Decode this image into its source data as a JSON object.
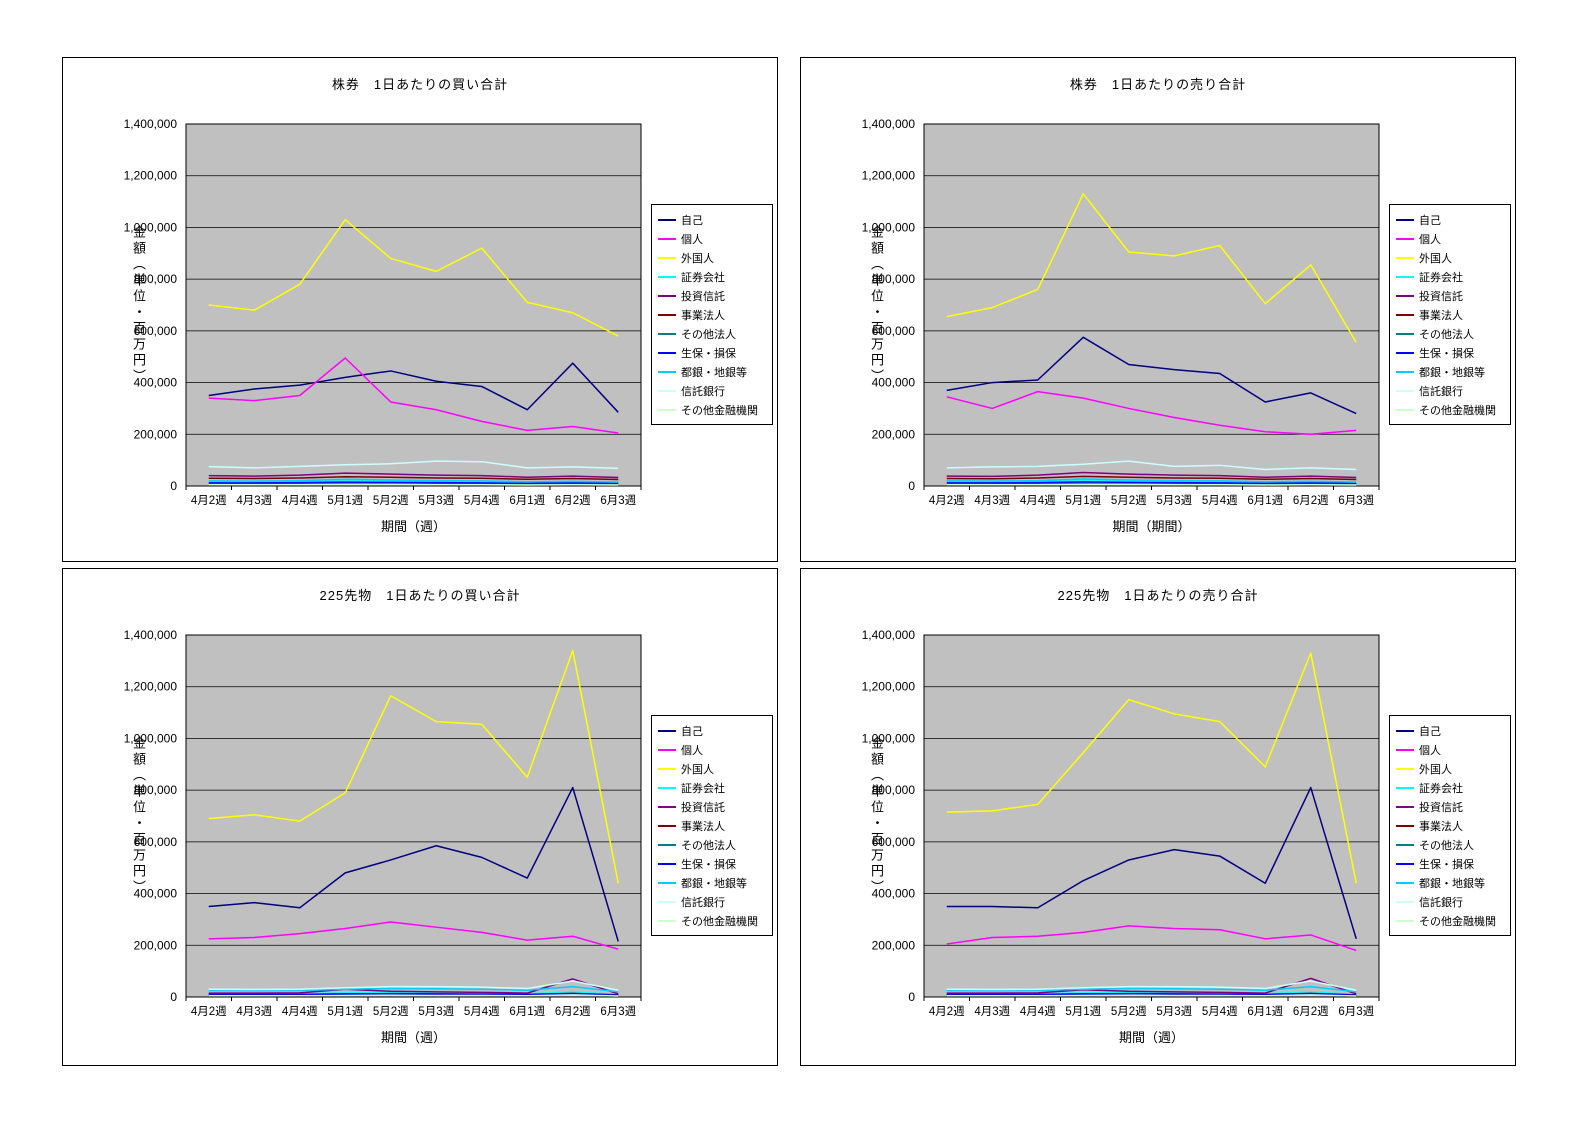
{
  "page": {
    "background": "#FFFFFF",
    "plot_background": "#C0C0C0",
    "axis_color": "#000000"
  },
  "chart_data": [
    {
      "type": "line",
      "title": "株券　1日あたりの買い合計",
      "xlabel": "期間（週）",
      "ylabel": "金額（単位・百万円）",
      "ylim": [
        0,
        1400000
      ],
      "ytick_step": 200000,
      "grid": true,
      "legend_position": "right",
      "categories": [
        "4月2週",
        "4月3週",
        "4月4週",
        "5月1週",
        "5月2週",
        "5月3週",
        "5月4週",
        "6月1週",
        "6月2週",
        "6月3週"
      ],
      "series": [
        {
          "name": "自己",
          "color": "#000080",
          "values": [
            350000,
            375000,
            390000,
            420000,
            445000,
            405000,
            385000,
            295000,
            475000,
            285000
          ]
        },
        {
          "name": "個人",
          "color": "#FF00FF",
          "values": [
            340000,
            330000,
            350000,
            495000,
            325000,
            295000,
            250000,
            215000,
            230000,
            205000
          ]
        },
        {
          "name": "外国人",
          "color": "#FFFF00",
          "values": [
            700000,
            680000,
            780000,
            1030000,
            880000,
            830000,
            920000,
            710000,
            670000,
            580000
          ]
        },
        {
          "name": "証券会社",
          "color": "#00FFFF",
          "values": [
            15000,
            14000,
            15000,
            20000,
            19000,
            16000,
            15000,
            11000,
            14000,
            10000
          ]
        },
        {
          "name": "投資信託",
          "color": "#800080",
          "values": [
            40000,
            38000,
            42000,
            50000,
            46000,
            42000,
            40000,
            34000,
            38000,
            33000
          ]
        },
        {
          "name": "事業法人",
          "color": "#800000",
          "values": [
            30000,
            29000,
            31000,
            36000,
            34000,
            31000,
            30000,
            26000,
            29000,
            25000
          ]
        },
        {
          "name": "その他法人",
          "color": "#008080",
          "values": [
            9000,
            9000,
            9000,
            10000,
            10000,
            9000,
            9000,
            7000,
            8000,
            7000
          ]
        },
        {
          "name": "生保・損保",
          "color": "#0000FF",
          "values": [
            12000,
            12000,
            13000,
            15000,
            14000,
            13000,
            12000,
            10000,
            12000,
            10000
          ]
        },
        {
          "name": "都銀・地銀等",
          "color": "#00CCFF",
          "values": [
            20000,
            19000,
            21000,
            26000,
            23000,
            21000,
            20000,
            16000,
            18000,
            15000
          ]
        },
        {
          "name": "信託銀行",
          "color": "#CCFFFF",
          "values": [
            75000,
            70000,
            76000,
            82000,
            86000,
            96000,
            94000,
            70000,
            74000,
            68000
          ]
        },
        {
          "name": "その他金融機関",
          "color": "#CCFFCC",
          "values": [
            5000,
            5000,
            5000,
            6000,
            6000,
            5000,
            5000,
            4000,
            5000,
            4000
          ]
        }
      ]
    },
    {
      "type": "line",
      "title": "株券　1日あたりの売り合計",
      "xlabel": "期間（期間）",
      "ylabel": "金額（単位・百万円）",
      "ylim": [
        0,
        1400000
      ],
      "ytick_step": 200000,
      "grid": true,
      "legend_position": "right",
      "categories": [
        "4月2週",
        "4月3週",
        "4月4週",
        "5月1週",
        "5月2週",
        "5月3週",
        "5月4週",
        "6月1週",
        "6月2週",
        "6月3週"
      ],
      "series": [
        {
          "name": "自己",
          "color": "#000080",
          "values": [
            370000,
            400000,
            410000,
            575000,
            470000,
            450000,
            435000,
            325000,
            360000,
            280000
          ]
        },
        {
          "name": "個人",
          "color": "#FF00FF",
          "values": [
            345000,
            300000,
            365000,
            340000,
            300000,
            265000,
            235000,
            210000,
            200000,
            215000
          ]
        },
        {
          "name": "外国人",
          "color": "#FFFF00",
          "values": [
            655000,
            690000,
            760000,
            1130000,
            905000,
            890000,
            930000,
            705000,
            855000,
            555000
          ]
        },
        {
          "name": "証券会社",
          "color": "#00FFFF",
          "values": [
            15000,
            14000,
            16000,
            21000,
            19000,
            16000,
            15000,
            11000,
            14000,
            10000
          ]
        },
        {
          "name": "投資信託",
          "color": "#800080",
          "values": [
            38000,
            37000,
            42000,
            52000,
            46000,
            42000,
            40000,
            34000,
            38000,
            33000
          ]
        },
        {
          "name": "事業法人",
          "color": "#800000",
          "values": [
            29000,
            28000,
            31000,
            37000,
            34000,
            31000,
            30000,
            26000,
            29000,
            25000
          ]
        },
        {
          "name": "その他法人",
          "color": "#008080",
          "values": [
            9000,
            9000,
            9000,
            11000,
            10000,
            9000,
            9000,
            7000,
            8000,
            7000
          ]
        },
        {
          "name": "生保・損保",
          "color": "#0000FF",
          "values": [
            12000,
            12000,
            13000,
            16000,
            14000,
            13000,
            12000,
            10000,
            12000,
            10000
          ]
        },
        {
          "name": "都銀・地銀等",
          "color": "#00CCFF",
          "values": [
            20000,
            19000,
            21000,
            27000,
            23000,
            21000,
            20000,
            16000,
            18000,
            15000
          ]
        },
        {
          "name": "信託銀行",
          "color": "#CCFFFF",
          "values": [
            70000,
            74000,
            76000,
            84000,
            96000,
            76000,
            80000,
            64000,
            70000,
            64000
          ]
        },
        {
          "name": "その他金融機関",
          "color": "#CCFFCC",
          "values": [
            5000,
            5000,
            5000,
            6000,
            6000,
            5000,
            5000,
            4000,
            5000,
            4000
          ]
        }
      ]
    },
    {
      "type": "line",
      "title": "225先物　1日あたりの買い合計",
      "xlabel": "期間（週）",
      "ylabel": "金額（単位・百万円）",
      "ylim": [
        0,
        1400000
      ],
      "ytick_step": 200000,
      "grid": true,
      "legend_position": "right",
      "categories": [
        "4月2週",
        "4月3週",
        "4月4週",
        "5月1週",
        "5月2週",
        "5月3週",
        "5月4週",
        "6月1週",
        "6月2週",
        "6月3週"
      ],
      "series": [
        {
          "name": "自己",
          "color": "#000080",
          "values": [
            350000,
            365000,
            345000,
            480000,
            530000,
            585000,
            540000,
            460000,
            810000,
            215000
          ]
        },
        {
          "name": "個人",
          "color": "#FF00FF",
          "values": [
            225000,
            230000,
            245000,
            265000,
            290000,
            270000,
            250000,
            220000,
            235000,
            185000
          ]
        },
        {
          "name": "外国人",
          "color": "#FFFF00",
          "values": [
            690000,
            705000,
            680000,
            790000,
            1165000,
            1065000,
            1055000,
            850000,
            1340000,
            440000
          ]
        },
        {
          "name": "証券会社",
          "color": "#00FFFF",
          "values": [
            12000,
            12000,
            12000,
            16000,
            18000,
            16000,
            15000,
            12000,
            20000,
            9000
          ]
        },
        {
          "name": "投資信託",
          "color": "#800080",
          "values": [
            15000,
            15000,
            16000,
            30000,
            22000,
            20000,
            18000,
            15000,
            70000,
            12000
          ]
        },
        {
          "name": "事業法人",
          "color": "#800000",
          "values": [
            10000,
            10000,
            10000,
            12000,
            13000,
            12000,
            11000,
            10000,
            14000,
            8000
          ]
        },
        {
          "name": "その他法人",
          "color": "#008080",
          "values": [
            6000,
            6000,
            6000,
            8000,
            8000,
            8000,
            7000,
            6000,
            9000,
            5000
          ]
        },
        {
          "name": "生保・損保",
          "color": "#0000FF",
          "values": [
            8000,
            8000,
            8000,
            12000,
            11000,
            10000,
            10000,
            8000,
            13000,
            7000
          ]
        },
        {
          "name": "都銀・地銀等",
          "color": "#00CCFF",
          "values": [
            25000,
            24000,
            25000,
            30000,
            33000,
            32000,
            30000,
            26000,
            40000,
            20000
          ]
        },
        {
          "name": "信託銀行",
          "color": "#CCFFFF",
          "values": [
            30000,
            29000,
            30000,
            36000,
            40000,
            40000,
            38000,
            33000,
            62000,
            26000
          ]
        },
        {
          "name": "その他金融機関",
          "color": "#CCFFCC",
          "values": [
            5000,
            5000,
            5000,
            6000,
            7000,
            6000,
            6000,
            5000,
            8000,
            4000
          ]
        }
      ]
    },
    {
      "type": "line",
      "title": "225先物　1日あたりの売り合計",
      "xlabel": "期間（週）",
      "ylabel": "金額（単位・百万円）",
      "ylim": [
        0,
        1400000
      ],
      "ytick_step": 200000,
      "grid": true,
      "legend_position": "right",
      "categories": [
        "4月2週",
        "4月3週",
        "4月4週",
        "5月1週",
        "5月2週",
        "5月3週",
        "5月4週",
        "6月1週",
        "6月2週",
        "6月3週"
      ],
      "series": [
        {
          "name": "自己",
          "color": "#000080",
          "values": [
            350000,
            350000,
            345000,
            450000,
            530000,
            570000,
            545000,
            440000,
            810000,
            225000
          ]
        },
        {
          "name": "個人",
          "color": "#FF00FF",
          "values": [
            205000,
            230000,
            235000,
            250000,
            275000,
            265000,
            260000,
            225000,
            240000,
            180000
          ]
        },
        {
          "name": "外国人",
          "color": "#FFFF00",
          "values": [
            715000,
            720000,
            745000,
            945000,
            1150000,
            1095000,
            1065000,
            890000,
            1330000,
            440000
          ]
        },
        {
          "name": "証券会社",
          "color": "#00FFFF",
          "values": [
            12000,
            12000,
            12000,
            16000,
            18000,
            16000,
            15000,
            12000,
            20000,
            9000
          ]
        },
        {
          "name": "投資信託",
          "color": "#800080",
          "values": [
            15000,
            15000,
            16000,
            28000,
            22000,
            20000,
            18000,
            15000,
            72000,
            12000
          ]
        },
        {
          "name": "事業法人",
          "color": "#800000",
          "values": [
            10000,
            10000,
            10000,
            12000,
            13000,
            12000,
            11000,
            10000,
            14000,
            8000
          ]
        },
        {
          "name": "その他法人",
          "color": "#008080",
          "values": [
            6000,
            6000,
            6000,
            8000,
            8000,
            8000,
            7000,
            6000,
            9000,
            5000
          ]
        },
        {
          "name": "生保・損保",
          "color": "#0000FF",
          "values": [
            8000,
            8000,
            8000,
            12000,
            11000,
            10000,
            10000,
            8000,
            13000,
            7000
          ]
        },
        {
          "name": "都銀・地銀等",
          "color": "#00CCFF",
          "values": [
            25000,
            24000,
            25000,
            30000,
            33000,
            32000,
            30000,
            26000,
            40000,
            20000
          ]
        },
        {
          "name": "信託銀行",
          "color": "#CCFFFF",
          "values": [
            30000,
            29000,
            30000,
            36000,
            40000,
            40000,
            38000,
            33000,
            62000,
            26000
          ]
        },
        {
          "name": "その他金融機関",
          "color": "#CCFFCC",
          "values": [
            5000,
            5000,
            5000,
            6000,
            7000,
            6000,
            6000,
            5000,
            8000,
            4000
          ]
        }
      ]
    }
  ]
}
